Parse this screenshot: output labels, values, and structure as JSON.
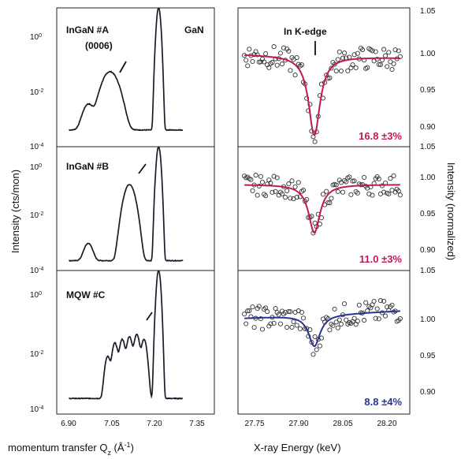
{
  "figure": {
    "left_ylabel": "Intensity (cts/mon)",
    "right_ylabel": "Intensity (normalized)",
    "left_xlabel": "momentum transfer Q",
    "left_xlabel_sub": "z",
    "left_xlabel_unit": " (Å",
    "left_xlabel_exp": "-1",
    "left_xlabel_close": ")",
    "right_xlabel": "X-ray Energy (keV)",
    "left_xticks": [
      "6.90",
      "7.05",
      "7.20",
      "7.35"
    ],
    "right_xticks": [
      "27.75",
      "27.90",
      "28.05",
      "28.20"
    ],
    "left_yticks": [
      {
        "base": "10",
        "exp": "0"
      },
      {
        "base": "10",
        "exp": "-2"
      },
      {
        "base": "10",
        "exp": "-4"
      }
    ],
    "right_yticks": [
      "1.05",
      "1.00",
      "0.95",
      "0.90"
    ]
  },
  "chart_data": [
    {
      "type": "line",
      "panel": "left-top",
      "labels": {
        "sample": "InGaN #A",
        "reflection": "(0006)",
        "substrate": "GaN"
      },
      "x_range": [
        6.85,
        7.5
      ],
      "y_scale": "log",
      "y_range": [
        0.0001,
        10
      ],
      "peaks": [
        {
          "x": 6.98,
          "y": 0.003,
          "w": 0.025
        },
        {
          "x": 7.07,
          "y": 0.05,
          "w": 0.035
        },
        {
          "x": 7.27,
          "y": 10,
          "w": 0.008
        }
      ],
      "background": 0.0004
    },
    {
      "type": "line",
      "panel": "left-middle",
      "labels": {
        "sample": "InGaN #B"
      },
      "x_range": [
        6.85,
        7.5
      ],
      "y_scale": "log",
      "y_range": [
        0.0001,
        10
      ],
      "peaks": [
        {
          "x": 6.98,
          "y": 0.001,
          "w": 0.02
        },
        {
          "x": 7.15,
          "y": 0.3,
          "w": 0.022
        },
        {
          "x": 7.27,
          "y": 10,
          "w": 0.008
        }
      ],
      "background": 0.00025
    },
    {
      "type": "line",
      "panel": "left-bottom",
      "labels": {
        "sample": "MQW #C"
      },
      "x_range": [
        6.85,
        7.5
      ],
      "y_scale": "log",
      "y_range": [
        0.0001,
        10
      ],
      "peaks": [
        {
          "x": 7.06,
          "y": 0.01,
          "w": 0.012
        },
        {
          "x": 7.09,
          "y": 0.03,
          "w": 0.012
        },
        {
          "x": 7.12,
          "y": 0.04,
          "w": 0.012
        },
        {
          "x": 7.15,
          "y": 0.05,
          "w": 0.012
        },
        {
          "x": 7.18,
          "y": 0.06,
          "w": 0.012
        },
        {
          "x": 7.21,
          "y": 0.04,
          "w": 0.012
        },
        {
          "x": 7.27,
          "y": 10,
          "w": 0.008
        }
      ],
      "background": 0.00035
    },
    {
      "type": "scatter",
      "panel": "right-top",
      "labels": {
        "edge": "In K-edge",
        "fraction": "16.8 ±3%"
      },
      "series_color": "#c2185b",
      "x_range": [
        27.7,
        28.24
      ],
      "y_range": [
        0.87,
        1.05
      ],
      "edge_energy": 27.94,
      "dip_min": 0.885,
      "fit_start": 0.99,
      "fit_end": 0.985
    },
    {
      "type": "scatter",
      "panel": "right-middle",
      "labels": {
        "fraction": "11.0 ±3%"
      },
      "series_color": "#c2185b",
      "x_range": [
        27.7,
        28.24
      ],
      "y_range": [
        0.87,
        1.05
      ],
      "edge_energy": 27.94,
      "dip_min": 0.925,
      "fit_start": 0.995,
      "fit_end": 0.995
    },
    {
      "type": "scatter",
      "panel": "right-bottom",
      "labels": {
        "fraction": "8.8 ±4%"
      },
      "series_color": "#283593",
      "x_range": [
        27.7,
        28.24
      ],
      "y_range": [
        0.87,
        1.05
      ],
      "edge_energy": 27.94,
      "dip_min": 0.955,
      "fit_start": 0.99,
      "fit_end": 1.0
    }
  ]
}
